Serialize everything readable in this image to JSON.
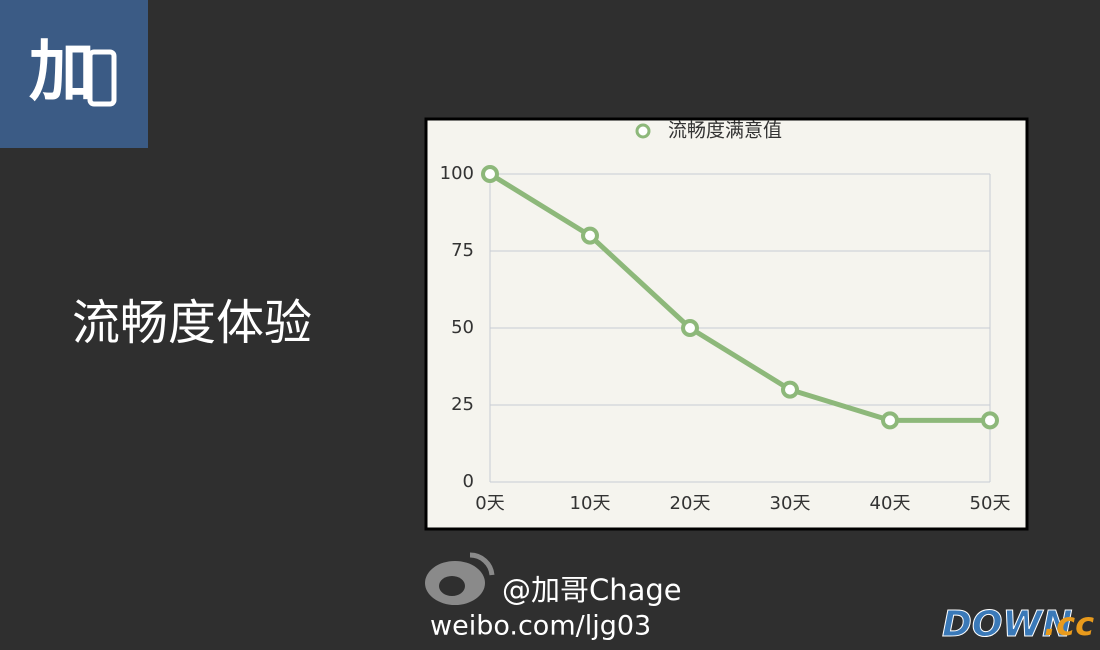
{
  "slide": {
    "logo": "加",
    "heading": "流畅度体验",
    "weibo_handle": "@加哥Chage",
    "weibo_url": "weibo.com/ljg03",
    "watermark_main": "DOWN",
    "watermark_suffix": ".cc"
  },
  "chart_data": {
    "type": "line",
    "categories": [
      "0天",
      "10天",
      "20天",
      "30天",
      "40天",
      "50天"
    ],
    "series": [
      {
        "name": "流畅度满意值",
        "color": "#8db87a",
        "values": [
          100,
          80,
          50,
          30,
          20,
          20
        ]
      }
    ],
    "ylim": [
      0,
      100
    ],
    "yticks": [
      0,
      25,
      50,
      75,
      100
    ],
    "grid": true,
    "legend": "top"
  }
}
